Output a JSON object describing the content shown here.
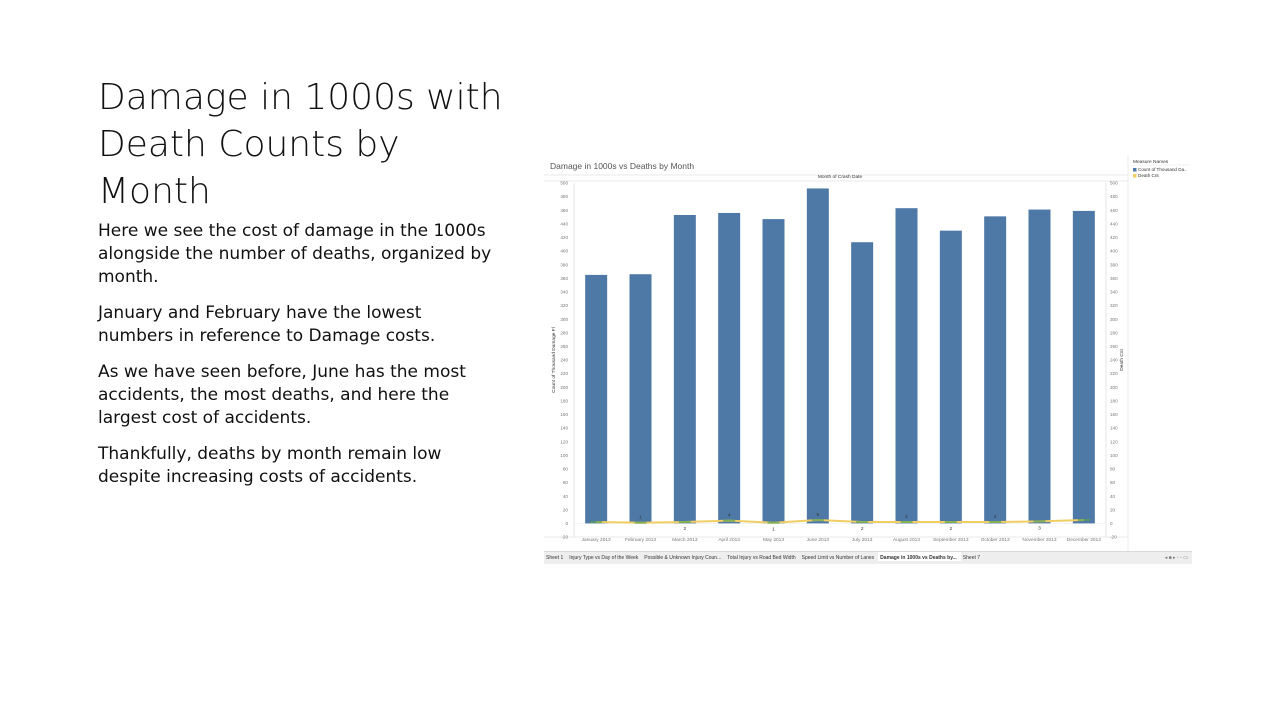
{
  "slide": {
    "title": "Damage in 1000s with Death Counts by Month",
    "paragraphs": [
      "Here we see the cost of damage in the 1000s alongside the number of deaths, organized by month.",
      "January and February have the lowest numbers in reference  to Damage costs.",
      "As we have seen before, June has the most accidents, the most deaths, and here the largest cost of accidents.",
      "Thankfully, deaths by month remain low despite increasing costs of accidents."
    ]
  },
  "worksheet": {
    "title": "Damage in 1000s vs Deaths by Month",
    "header": "Month of Crash Date",
    "legend_title": "Measure Names",
    "tabs": [
      "Sheet 1",
      "Injury Type vs Day of the Week",
      "Possible & Unknown Injury Coun...",
      "Total Injury vs Road Bed Width",
      "Speed Limit vs Number of Lanes",
      "Damage in 1000s vs Deaths by...",
      "Sheet 7"
    ],
    "active_tab": 5,
    "tab_controls": "◂ ■ ▸ ▫ ▫ ▭"
  },
  "chart_data": {
    "type": "bar",
    "categories": [
      "January 2013",
      "February 2013",
      "March 2013",
      "April 2013",
      "May 2013",
      "June 2013",
      "July 2013",
      "August 2013",
      "September 2013",
      "October 2013",
      "November 2013",
      "December 2013"
    ],
    "series": [
      {
        "name": "Count of Thousand Da..",
        "type": "bar",
        "axis": "left",
        "color": "#4e79a7",
        "values": [
          365,
          366,
          453,
          456,
          447,
          492,
          413,
          463,
          430,
          451,
          461,
          459
        ]
      },
      {
        "name": "Death Cnt",
        "type": "line",
        "axis": "right",
        "color": "#f1ce63",
        "values": [
          2,
          1,
          2,
          4,
          1,
          5,
          2,
          2,
          2,
          2,
          3,
          5
        ]
      }
    ],
    "point_labels": [
      "",
      "1",
      "2",
      "4",
      "1",
      "5",
      "2",
      "2",
      "2",
      "2",
      "3",
      ""
    ],
    "ylabel": "Count of Thousand Damage Fl",
    "ylabel_right": "Death Cnt",
    "ylim": [
      -20,
      500
    ],
    "ylim_right": [
      -20,
      500
    ],
    "yticks": [
      -20,
      0,
      20,
      40,
      60,
      80,
      100,
      120,
      140,
      160,
      180,
      200,
      220,
      240,
      260,
      280,
      300,
      320,
      340,
      360,
      380,
      400,
      420,
      440,
      460,
      480,
      500
    ],
    "grid": false,
    "legend_position": "right"
  }
}
